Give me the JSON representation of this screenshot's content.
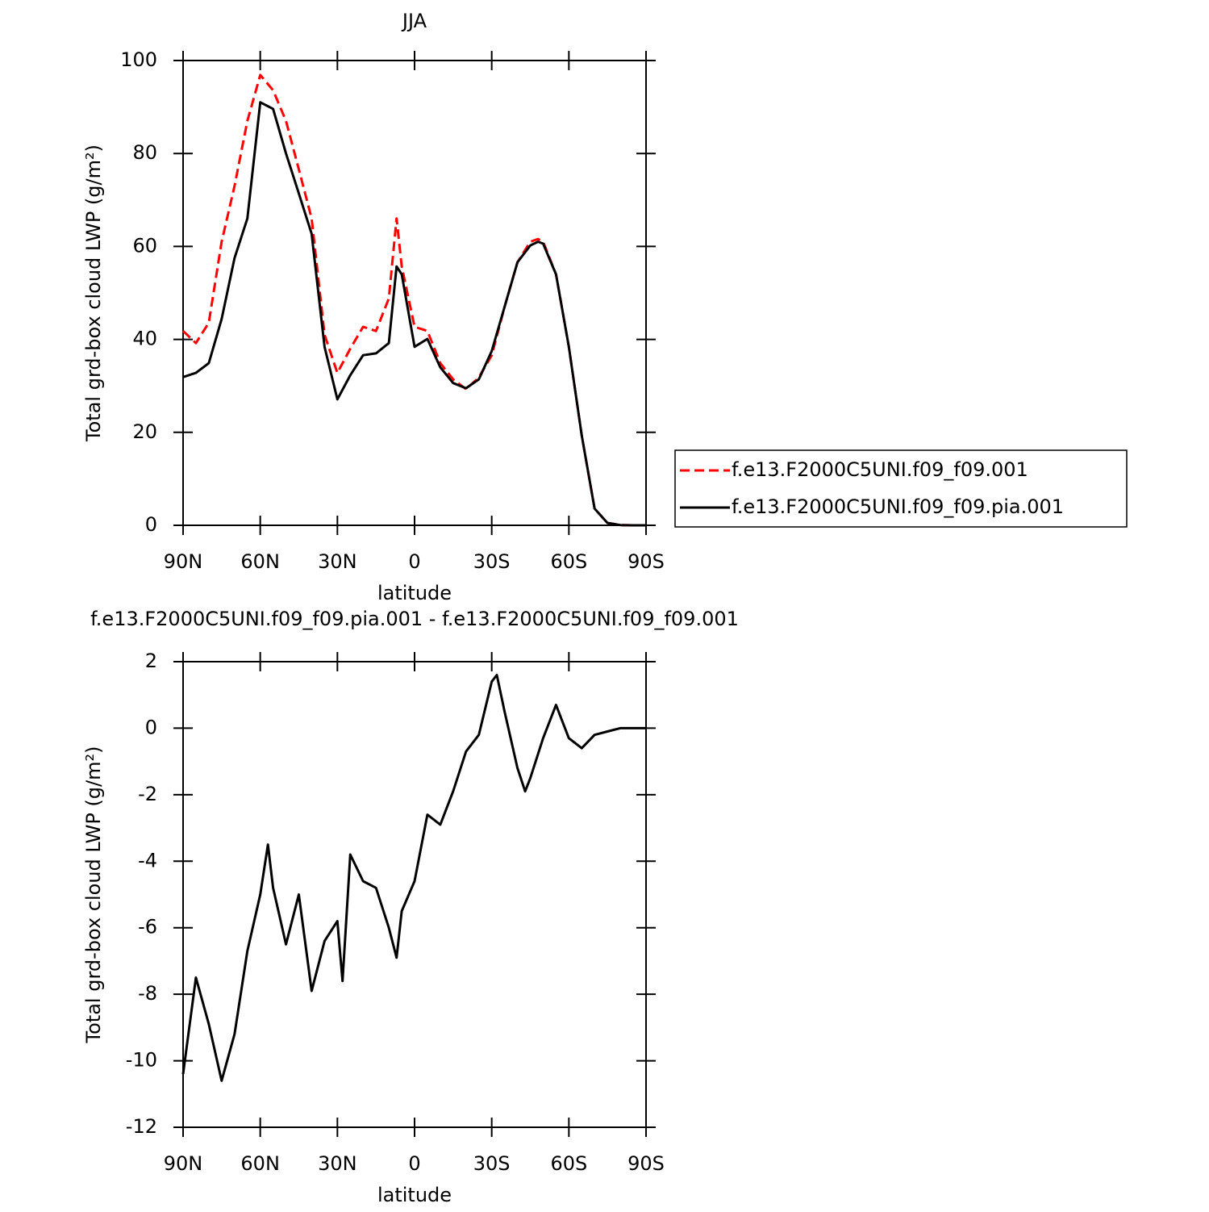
{
  "chart_data": [
    {
      "type": "line",
      "title": "JJA",
      "xlabel": "latitude",
      "ylabel": "Total grd-box cloud LWP (g/m²)",
      "x": [
        90,
        85,
        80,
        75,
        70,
        65,
        60,
        55,
        50,
        45,
        40,
        35,
        30,
        25,
        20,
        15,
        10,
        7,
        5,
        0,
        -5,
        -10,
        -15,
        -20,
        -25,
        -30,
        -35,
        -40,
        -45,
        -48,
        -50,
        -55,
        -60,
        -65,
        -70,
        -75,
        -80,
        -85,
        -90
      ],
      "series": [
        {
          "name": "f.e13.F2000C5UNI.f09_f09.001",
          "color": "#ff0000",
          "style": "dashed",
          "values": [
            41.8,
            39.2,
            43.6,
            61,
            73,
            87,
            96.9,
            93.6,
            87,
            76.6,
            66,
            41,
            32.8,
            38,
            42.7,
            41.8,
            48.8,
            66,
            55.7,
            42.7,
            41.8,
            34.9,
            31.4,
            29.3,
            31.8,
            36.6,
            47,
            56.6,
            61,
            61.6,
            61,
            54,
            38.4,
            19.3,
            3.6,
            0.5,
            0.05,
            0,
            0
          ]
        },
        {
          "name": "f.e13.F2000C5UNI.f09_f09.pia.001",
          "color": "#000000",
          "style": "solid",
          "values": [
            31.9,
            32.8,
            34.9,
            44.4,
            57.5,
            66,
            91,
            89.6,
            80,
            71.4,
            62.7,
            38.4,
            27.1,
            32.3,
            36.6,
            37,
            39.2,
            55.7,
            54,
            38.4,
            40.1,
            34,
            30.6,
            29.5,
            31.4,
            37.5,
            47,
            56.6,
            60.2,
            61,
            60.6,
            54,
            38.4,
            19.3,
            3.6,
            0.5,
            0.05,
            0,
            0
          ]
        }
      ],
      "xlim": [
        90,
        -90
      ],
      "xticks": [
        {
          "value": 90,
          "label": "90N"
        },
        {
          "value": 60,
          "label": "60N"
        },
        {
          "value": 30,
          "label": "30N"
        },
        0,
        {
          "value": -30,
          "label": "30S"
        },
        {
          "value": -60,
          "label": "60S"
        },
        {
          "value": -90,
          "label": "90S"
        }
      ],
      "ylim": [
        0,
        100
      ],
      "yticks": [
        0,
        20,
        40,
        60,
        80,
        100
      ],
      "legend": "right"
    },
    {
      "type": "line",
      "title": "f.e13.F2000C5UNI.f09_f09.pia.001 - f.e13.F2000C5UNI.f09_f09.001",
      "xlabel": "latitude",
      "ylabel": "Total grd-box cloud LWP (g/m²)",
      "x": [
        90,
        85,
        80,
        75,
        70,
        65,
        60,
        57,
        55,
        50,
        45,
        40,
        35,
        30,
        28,
        25,
        20,
        15,
        10,
        7,
        5,
        0,
        -5,
        -10,
        -15,
        -20,
        -25,
        -30,
        -32,
        -35,
        -40,
        -43,
        -45,
        -50,
        -55,
        -60,
        -65,
        -70,
        -75,
        -80,
        -85,
        -90
      ],
      "series": [
        {
          "color": "#000000",
          "style": "solid",
          "values": [
            -10.4,
            -7.5,
            -8.9,
            -10.6,
            -9.2,
            -6.7,
            -5.0,
            -3.5,
            -4.8,
            -6.5,
            -5.0,
            -7.9,
            -6.4,
            -5.8,
            -7.6,
            -3.8,
            -4.6,
            -4.8,
            -6.0,
            -6.9,
            -5.5,
            -4.6,
            -2.6,
            -2.9,
            -1.9,
            -0.7,
            -0.2,
            1.4,
            1.6,
            0.5,
            -1.2,
            -1.9,
            -1.5,
            -0.3,
            0.7,
            -0.3,
            -0.6,
            -0.2,
            -0.1,
            0,
            0,
            0
          ]
        }
      ],
      "xlim": [
        90,
        -90
      ],
      "xticks": [
        {
          "value": 90,
          "label": "90N"
        },
        {
          "value": 60,
          "label": "60N"
        },
        {
          "value": 30,
          "label": "30N"
        },
        0,
        {
          "value": -30,
          "label": "30S"
        },
        {
          "value": -60,
          "label": "60S"
        },
        {
          "value": -90,
          "label": "90S"
        }
      ],
      "ylim": [
        -12,
        2
      ],
      "yticks": [
        -12,
        -10,
        -8,
        -6,
        -4,
        -2,
        0,
        2
      ]
    }
  ]
}
